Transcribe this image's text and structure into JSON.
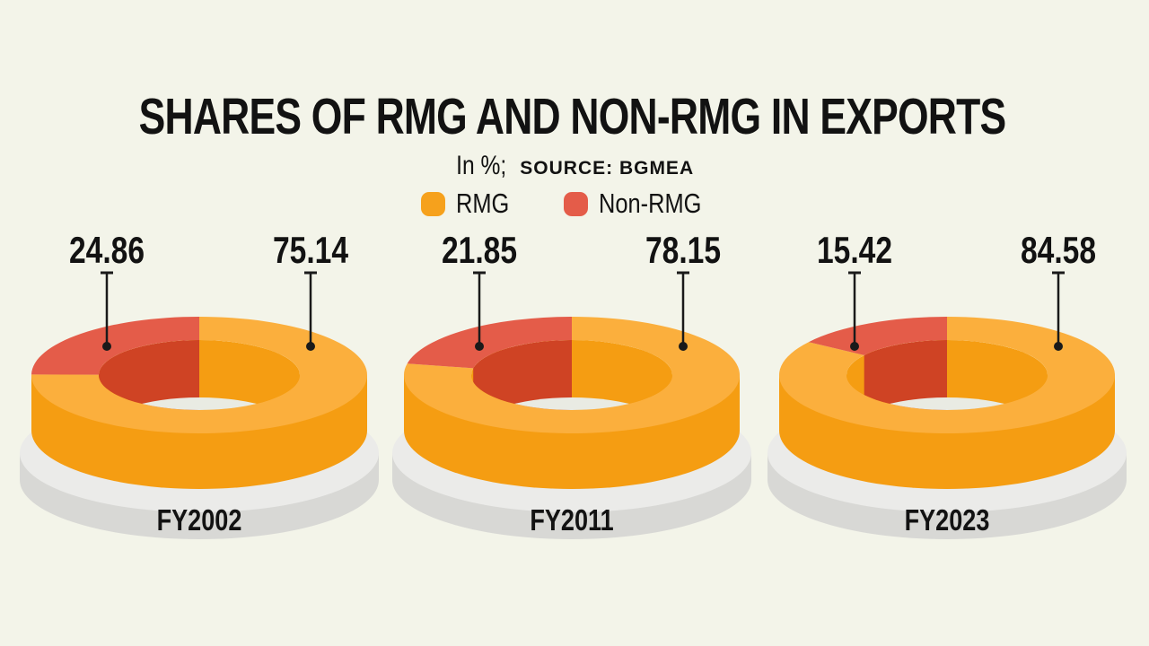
{
  "header": {
    "title": "SHARES OF RMG AND NON-RMG IN EXPORTS",
    "subtitle_unit": "In %;",
    "subtitle_source": "SOURCE: BGMEA"
  },
  "legend": {
    "position": "top-center",
    "items": [
      {
        "label": "RMG",
        "color": "#F6A11C"
      },
      {
        "label": "Non-RMG",
        "color": "#E45C49"
      }
    ]
  },
  "chart_data": {
    "type": "pie",
    "variant": "3d-donut-triptych",
    "title": "SHARES OF RMG AND NON-RMG IN EXPORTS",
    "unit": "%",
    "source": "BGMEA",
    "series_names": [
      "Non-RMG",
      "RMG"
    ],
    "charts": [
      {
        "year": "FY2002",
        "non_rmg": 24.86,
        "rmg": 75.14
      },
      {
        "year": "FY2011",
        "non_rmg": 21.85,
        "rmg": 78.15
      },
      {
        "year": "FY2023",
        "non_rmg": 15.42,
        "rmg": 84.58
      }
    ],
    "colors": {
      "rmg_top": "#FBAF3D",
      "rmg_side": "#F59D12",
      "non_rmg_top": "#E45C49",
      "non_rmg_side": "#CF4324",
      "hole_floor": "#E9EBE3",
      "platter_top": "#EBEBE9",
      "platter_side": "#D8D8D5",
      "leader_line": "#1A1A1A",
      "background": "#F3F4E9",
      "text": "#121212"
    }
  }
}
